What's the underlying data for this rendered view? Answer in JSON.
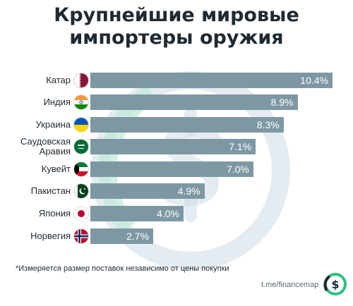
{
  "title_line1": "Крупнейшие мировые",
  "title_line2": "импортеры оружия",
  "footnote": "*Измеряется размер поставок независимо от цены покупки",
  "source": "t.me/financemap",
  "logo_symbol": "$",
  "colors": {
    "bar": "#7e98a3",
    "text": "#1f2a33",
    "watermark_green": "#bfe9d9",
    "watermark_blue": "#cfdde6",
    "logo_green": "#2fbf7f"
  },
  "chart_data": {
    "type": "bar",
    "orientation": "horizontal",
    "title": "Крупнейшие мировые импортеры оружия",
    "categories": [
      "Катар",
      "Индия",
      "Украина",
      "Саудовская Аравия",
      "Кувейт",
      "Пакистан",
      "Япония",
      "Норвегия"
    ],
    "category_lines": [
      [
        "Катар"
      ],
      [
        "Индия"
      ],
      [
        "Украина"
      ],
      [
        "Саудовская",
        "Аравия"
      ],
      [
        "Кувейт"
      ],
      [
        "Пакистан"
      ],
      [
        "Япония"
      ],
      [
        "Норвегия"
      ]
    ],
    "values": [
      10.4,
      8.9,
      8.3,
      7.1,
      7.0,
      4.9,
      4.0,
      2.7
    ],
    "value_labels": [
      "10.4%",
      "8.9%",
      "8.3%",
      "7.1%",
      "7.0%",
      "4.9%",
      "4.0%",
      "2.7%"
    ],
    "flags": [
      "qatar-flag",
      "india-flag",
      "ukraine-flag",
      "saudi-flag",
      "kuwait-flag",
      "pakistan-flag",
      "japan-flag",
      "norway-flag"
    ],
    "xlim": [
      0,
      10.4
    ],
    "grid": false,
    "legend": "none"
  }
}
